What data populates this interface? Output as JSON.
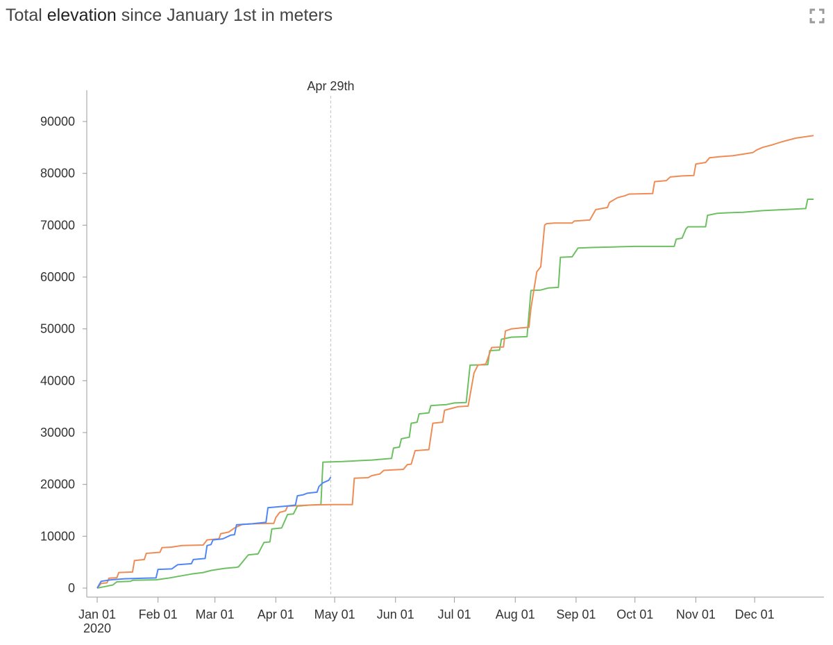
{
  "title": {
    "prefix": "Total ",
    "strong": "elevation",
    "suffix": " since January 1st in meters"
  },
  "fullscreen_icon": "fullscreen-icon",
  "chart_data": {
    "type": "line",
    "title": "Total elevation since January 1st in meters",
    "xlabel": "",
    "ylabel": "",
    "x_axis": {
      "kind": "date",
      "range": [
        "2020-01-01",
        "2020-12-31"
      ],
      "ticks": [
        "Jan 01",
        "Feb 01",
        "Mar 01",
        "Apr 01",
        "May 01",
        "Jun 01",
        "Jul 01",
        "Aug 01",
        "Sep 01",
        "Oct 01",
        "Nov 01",
        "Dec 01"
      ],
      "tick_dates": [
        "2020-01-01",
        "2020-02-01",
        "2020-03-01",
        "2020-04-01",
        "2020-05-01",
        "2020-06-01",
        "2020-07-01",
        "2020-08-01",
        "2020-09-01",
        "2020-10-01",
        "2020-11-01",
        "2020-12-01"
      ],
      "year_label": "2020"
    },
    "y_axis": {
      "ylim": [
        0,
        92000
      ],
      "ticks": [
        0,
        10000,
        20000,
        30000,
        40000,
        50000,
        60000,
        70000,
        80000,
        90000
      ],
      "tick_labels": [
        "0",
        "10000",
        "20000",
        "30000",
        "40000",
        "50000",
        "60000",
        "70000",
        "80000",
        "90000"
      ]
    },
    "grid": false,
    "legend": "none",
    "marker": {
      "date": "2020-04-29",
      "label": "Apr 29th"
    },
    "series": [
      {
        "color": "#4f86f7",
        "points": [
          [
            "2020-01-01",
            0
          ],
          [
            "2020-01-03",
            1300
          ],
          [
            "2020-01-08",
            1600
          ],
          [
            "2020-01-15",
            1800
          ],
          [
            "2020-01-25",
            1900
          ],
          [
            "2020-01-31",
            1950
          ],
          [
            "2020-02-01",
            3600
          ],
          [
            "2020-02-08",
            3700
          ],
          [
            "2020-02-11",
            4500
          ],
          [
            "2020-02-18",
            4700
          ],
          [
            "2020-02-19",
            5500
          ],
          [
            "2020-02-25",
            5700
          ],
          [
            "2020-02-26",
            8200
          ],
          [
            "2020-02-28",
            8400
          ],
          [
            "2020-02-29",
            9300
          ],
          [
            "2020-03-05",
            9500
          ],
          [
            "2020-03-09",
            10200
          ],
          [
            "2020-03-11",
            10300
          ],
          [
            "2020-03-12",
            12200
          ],
          [
            "2020-03-20",
            12400
          ],
          [
            "2020-03-25",
            12600
          ],
          [
            "2020-03-27",
            12700
          ],
          [
            "2020-03-28",
            15500
          ],
          [
            "2020-04-06",
            15800
          ],
          [
            "2020-04-11",
            16000
          ],
          [
            "2020-04-12",
            17800
          ],
          [
            "2020-04-15",
            18000
          ],
          [
            "2020-04-17",
            18300
          ],
          [
            "2020-04-22",
            18500
          ],
          [
            "2020-04-23",
            19600
          ],
          [
            "2020-04-25",
            20300
          ],
          [
            "2020-04-28",
            20800
          ],
          [
            "2020-04-29",
            21400
          ]
        ]
      },
      {
        "color": "#ee8c55",
        "points": [
          [
            "2020-01-01",
            0
          ],
          [
            "2020-01-03",
            900
          ],
          [
            "2020-01-06",
            1000
          ],
          [
            "2020-01-07",
            1900
          ],
          [
            "2020-01-11",
            2000
          ],
          [
            "2020-01-12",
            3000
          ],
          [
            "2020-01-19",
            3100
          ],
          [
            "2020-01-20",
            5300
          ],
          [
            "2020-01-25",
            5500
          ],
          [
            "2020-01-26",
            6700
          ],
          [
            "2020-02-02",
            6900
          ],
          [
            "2020-02-03",
            7800
          ],
          [
            "2020-02-08",
            7900
          ],
          [
            "2020-02-13",
            8200
          ],
          [
            "2020-02-24",
            8300
          ],
          [
            "2020-02-26",
            9300
          ],
          [
            "2020-03-03",
            9500
          ],
          [
            "2020-03-04",
            10500
          ],
          [
            "2020-03-08",
            10800
          ],
          [
            "2020-03-11",
            11600
          ],
          [
            "2020-03-15",
            12300
          ],
          [
            "2020-03-21",
            12400
          ],
          [
            "2020-03-31",
            12500
          ],
          [
            "2020-04-01",
            13600
          ],
          [
            "2020-04-03",
            14600
          ],
          [
            "2020-04-06",
            14900
          ],
          [
            "2020-04-07",
            15800
          ],
          [
            "2020-04-18",
            16000
          ],
          [
            "2020-04-29",
            16100
          ],
          [
            "2020-05-10",
            16100
          ],
          [
            "2020-05-11",
            21200
          ],
          [
            "2020-05-18",
            21300
          ],
          [
            "2020-05-20",
            21700
          ],
          [
            "2020-05-24",
            22000
          ],
          [
            "2020-05-26",
            22700
          ],
          [
            "2020-05-31",
            22800
          ],
          [
            "2020-06-05",
            22900
          ],
          [
            "2020-06-07",
            23800
          ],
          [
            "2020-06-09",
            23900
          ],
          [
            "2020-06-11",
            26500
          ],
          [
            "2020-06-18",
            26700
          ],
          [
            "2020-06-20",
            31800
          ],
          [
            "2020-06-25",
            32000
          ],
          [
            "2020-06-26",
            34300
          ],
          [
            "2020-06-30",
            34700
          ],
          [
            "2020-07-03",
            35000
          ],
          [
            "2020-07-08",
            35100
          ],
          [
            "2020-07-11",
            41500
          ],
          [
            "2020-07-13",
            43000
          ],
          [
            "2020-07-17",
            43200
          ],
          [
            "2020-07-20",
            46400
          ],
          [
            "2020-07-26",
            46500
          ],
          [
            "2020-07-27",
            49600
          ],
          [
            "2020-07-30",
            50000
          ],
          [
            "2020-08-04",
            50200
          ],
          [
            "2020-08-08",
            50300
          ],
          [
            "2020-08-09",
            54000
          ],
          [
            "2020-08-12",
            61000
          ],
          [
            "2020-08-14",
            62000
          ],
          [
            "2020-08-16",
            70000
          ],
          [
            "2020-08-17",
            70300
          ],
          [
            "2020-08-21",
            70400
          ],
          [
            "2020-08-30",
            70400
          ],
          [
            "2020-08-31",
            70800
          ],
          [
            "2020-09-08",
            71000
          ],
          [
            "2020-09-11",
            73000
          ],
          [
            "2020-09-17",
            73400
          ],
          [
            "2020-09-18",
            74400
          ],
          [
            "2020-09-22",
            75300
          ],
          [
            "2020-09-26",
            75700
          ],
          [
            "2020-09-28",
            76000
          ],
          [
            "2020-10-10",
            76100
          ],
          [
            "2020-10-11",
            78400
          ],
          [
            "2020-10-17",
            78600
          ],
          [
            "2020-10-19",
            79300
          ],
          [
            "2020-10-25",
            79500
          ],
          [
            "2020-10-31",
            79600
          ],
          [
            "2020-11-01",
            81800
          ],
          [
            "2020-11-06",
            82100
          ],
          [
            "2020-11-08",
            83000
          ],
          [
            "2020-11-13",
            83200
          ],
          [
            "2020-11-20",
            83400
          ],
          [
            "2020-11-30",
            84000
          ],
          [
            "2020-12-02",
            84500
          ],
          [
            "2020-12-05",
            85000
          ],
          [
            "2020-12-10",
            85500
          ],
          [
            "2020-12-15",
            86100
          ],
          [
            "2020-12-22",
            86800
          ],
          [
            "2020-12-31",
            87300
          ]
        ]
      },
      {
        "color": "#6cc061",
        "points": [
          [
            "2020-01-01",
            0
          ],
          [
            "2020-01-05",
            300
          ],
          [
            "2020-01-09",
            600
          ],
          [
            "2020-01-11",
            1200
          ],
          [
            "2020-01-18",
            1300
          ],
          [
            "2020-01-19",
            1500
          ],
          [
            "2020-01-31",
            1600
          ],
          [
            "2020-02-06",
            1900
          ],
          [
            "2020-02-12",
            2300
          ],
          [
            "2020-02-18",
            2700
          ],
          [
            "2020-02-24",
            3000
          ],
          [
            "2020-02-28",
            3400
          ],
          [
            "2020-03-06",
            3800
          ],
          [
            "2020-03-12",
            4000
          ],
          [
            "2020-03-13",
            4100
          ],
          [
            "2020-03-18",
            6400
          ],
          [
            "2020-03-23",
            6600
          ],
          [
            "2020-03-26",
            8800
          ],
          [
            "2020-03-29",
            8900
          ],
          [
            "2020-03-30",
            11400
          ],
          [
            "2020-04-04",
            11600
          ],
          [
            "2020-04-07",
            14200
          ],
          [
            "2020-04-10",
            14300
          ],
          [
            "2020-04-12",
            15800
          ],
          [
            "2020-04-18",
            16000
          ],
          [
            "2020-04-24",
            16100
          ],
          [
            "2020-04-25",
            24300
          ],
          [
            "2020-05-05",
            24400
          ],
          [
            "2020-05-15",
            24600
          ],
          [
            "2020-05-20",
            24700
          ],
          [
            "2020-05-30",
            25000
          ],
          [
            "2020-05-31",
            27000
          ],
          [
            "2020-06-03",
            27200
          ],
          [
            "2020-06-04",
            28800
          ],
          [
            "2020-06-08",
            29100
          ],
          [
            "2020-06-09",
            31800
          ],
          [
            "2020-06-12",
            32000
          ],
          [
            "2020-06-13",
            33600
          ],
          [
            "2020-06-18",
            33800
          ],
          [
            "2020-06-19",
            35200
          ],
          [
            "2020-06-27",
            35400
          ],
          [
            "2020-07-01",
            35700
          ],
          [
            "2020-07-07",
            35800
          ],
          [
            "2020-07-09",
            43000
          ],
          [
            "2020-07-18",
            43100
          ],
          [
            "2020-07-19",
            45800
          ],
          [
            "2020-07-24",
            45900
          ],
          [
            "2020-07-25",
            48000
          ],
          [
            "2020-07-30",
            48400
          ],
          [
            "2020-08-07",
            48500
          ],
          [
            "2020-08-09",
            57400
          ],
          [
            "2020-08-14",
            57500
          ],
          [
            "2020-08-18",
            57900
          ],
          [
            "2020-08-23",
            58000
          ],
          [
            "2020-08-24",
            63800
          ],
          [
            "2020-08-30",
            63900
          ],
          [
            "2020-09-02",
            65600
          ],
          [
            "2020-09-10",
            65700
          ],
          [
            "2020-09-20",
            65800
          ],
          [
            "2020-10-01",
            65900
          ],
          [
            "2020-10-21",
            65900
          ],
          [
            "2020-10-22",
            67300
          ],
          [
            "2020-10-25",
            67500
          ],
          [
            "2020-10-27",
            69300
          ],
          [
            "2020-10-28",
            69700
          ],
          [
            "2020-11-06",
            69700
          ],
          [
            "2020-11-07",
            71900
          ],
          [
            "2020-11-12",
            72300
          ],
          [
            "2020-11-18",
            72400
          ],
          [
            "2020-11-25",
            72500
          ],
          [
            "2020-12-05",
            72800
          ],
          [
            "2020-12-16",
            73000
          ],
          [
            "2020-12-27",
            73200
          ],
          [
            "2020-12-28",
            75000
          ],
          [
            "2020-12-31",
            75000
          ]
        ]
      }
    ]
  }
}
